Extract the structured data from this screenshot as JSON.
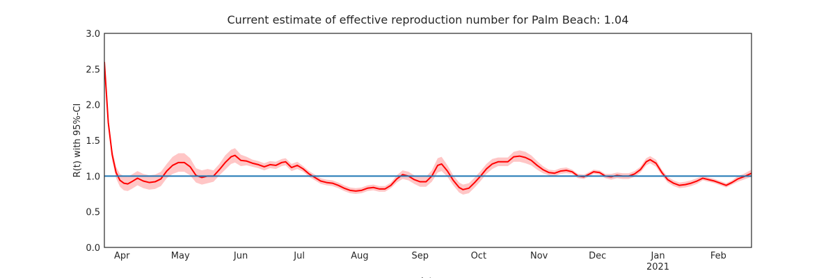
{
  "chart_data": {
    "type": "line",
    "title": "Current estimate of effective reproduction number for Palm Beach: 1.04",
    "ylabel": "R(t) with 95%-CI",
    "xlabel": "date",
    "xlim": [
      0,
      332
    ],
    "xticks": [
      {
        "value": 9,
        "label": "Apr"
      },
      {
        "value": 39,
        "label": "May"
      },
      {
        "value": 70,
        "label": "Jun"
      },
      {
        "value": 100,
        "label": "Jul"
      },
      {
        "value": 131,
        "label": "Aug"
      },
      {
        "value": 162,
        "label": "Sep"
      },
      {
        "value": 192,
        "label": "Oct"
      },
      {
        "value": 223,
        "label": "Nov"
      },
      {
        "value": 253,
        "label": "Dec"
      },
      {
        "value": 284,
        "label": "Jan"
      },
      {
        "value": 315,
        "label": "Feb"
      }
    ],
    "xsublabels": [
      {
        "value": 284,
        "label": "2021"
      }
    ],
    "ylim": [
      0,
      3
    ],
    "yticks": [
      {
        "value": 0,
        "label": "0.0"
      },
      0.5,
      {
        "value": 1,
        "label": "1.0"
      },
      1.5,
      {
        "value": 2,
        "label": "2.0"
      },
      2.5,
      {
        "value": 3,
        "label": "3.0"
      }
    ],
    "reference_line": {
      "value": 1,
      "color": "#1f77b4"
    },
    "x": [
      0,
      2,
      4,
      6,
      8,
      10,
      12,
      14,
      17,
      20,
      23,
      26,
      29,
      32,
      35,
      38,
      41,
      44,
      47,
      50,
      53,
      56,
      59,
      62,
      65,
      67,
      70,
      73,
      76,
      79,
      82,
      85,
      88,
      91,
      93,
      96,
      99,
      102,
      105,
      108,
      111,
      114,
      117,
      120,
      123,
      126,
      129,
      132,
      135,
      138,
      141,
      144,
      147,
      150,
      153,
      156,
      159,
      162,
      165,
      168,
      171,
      173,
      176,
      179,
      182,
      184,
      187,
      190,
      193,
      196,
      199,
      202,
      205,
      207,
      210,
      213,
      216,
      219,
      222,
      225,
      228,
      231,
      234,
      237,
      240,
      243,
      246,
      249,
      251,
      254,
      257,
      260,
      263,
      266,
      269,
      272,
      275,
      278,
      280,
      283,
      286,
      289,
      292,
      295,
      298,
      301,
      304,
      307,
      310,
      313,
      316,
      319,
      322,
      325,
      328,
      332
    ],
    "series": [
      {
        "color": "#ff0000",
        "band_color": "#ffb3b3",
        "values": [
          2.6,
          1.75,
          1.3,
          1.05,
          0.94,
          0.9,
          0.89,
          0.92,
          0.97,
          0.93,
          0.91,
          0.92,
          0.96,
          1.07,
          1.15,
          1.19,
          1.19,
          1.13,
          1.01,
          0.98,
          1.0,
          1.0,
          1.09,
          1.19,
          1.27,
          1.29,
          1.22,
          1.21,
          1.18,
          1.16,
          1.13,
          1.16,
          1.15,
          1.19,
          1.2,
          1.12,
          1.15,
          1.1,
          1.03,
          0.98,
          0.93,
          0.91,
          0.9,
          0.87,
          0.83,
          0.8,
          0.79,
          0.8,
          0.83,
          0.84,
          0.82,
          0.82,
          0.87,
          0.96,
          1.02,
          1.0,
          0.95,
          0.92,
          0.92,
          1.0,
          1.15,
          1.17,
          1.07,
          0.94,
          0.84,
          0.81,
          0.83,
          0.91,
          1.0,
          1.1,
          1.17,
          1.2,
          1.2,
          1.2,
          1.27,
          1.28,
          1.26,
          1.22,
          1.15,
          1.09,
          1.05,
          1.04,
          1.07,
          1.08,
          1.06,
          1.0,
          0.99,
          1.03,
          1.06,
          1.05,
          1.0,
          0.99,
          1.01,
          1.0,
          1.0,
          1.03,
          1.09,
          1.2,
          1.23,
          1.18,
          1.05,
          0.95,
          0.9,
          0.87,
          0.88,
          0.9,
          0.93,
          0.97,
          0.95,
          0.93,
          0.9,
          0.87,
          0.91,
          0.96,
          0.99,
          1.04
        ],
        "lower": [
          2.5,
          1.67,
          1.22,
          0.97,
          0.85,
          0.8,
          0.79,
          0.82,
          0.87,
          0.83,
          0.81,
          0.82,
          0.86,
          0.97,
          1.03,
          1.06,
          1.06,
          1.01,
          0.91,
          0.88,
          0.9,
          0.92,
          1.01,
          1.09,
          1.17,
          1.19,
          1.14,
          1.15,
          1.13,
          1.11,
          1.08,
          1.11,
          1.1,
          1.14,
          1.15,
          1.07,
          1.1,
          1.06,
          0.99,
          0.94,
          0.89,
          0.87,
          0.86,
          0.83,
          0.79,
          0.76,
          0.75,
          0.76,
          0.79,
          0.8,
          0.78,
          0.78,
          0.83,
          0.91,
          0.96,
          0.94,
          0.89,
          0.85,
          0.85,
          0.92,
          1.05,
          1.07,
          0.99,
          0.87,
          0.77,
          0.74,
          0.76,
          0.84,
          0.93,
          1.03,
          1.1,
          1.14,
          1.14,
          1.14,
          1.2,
          1.2,
          1.18,
          1.15,
          1.09,
          1.04,
          1.01,
          1.0,
          1.03,
          1.04,
          1.03,
          0.97,
          0.96,
          1.0,
          1.03,
          1.02,
          0.97,
          0.95,
          0.97,
          0.96,
          0.96,
          0.99,
          1.05,
          1.15,
          1.18,
          1.13,
          1.01,
          0.91,
          0.86,
          0.83,
          0.84,
          0.86,
          0.89,
          0.94,
          0.92,
          0.9,
          0.87,
          0.84,
          0.88,
          0.92,
          0.95,
          0.99
        ],
        "upper": [
          2.7,
          1.83,
          1.38,
          1.13,
          1.03,
          1.0,
          0.99,
          1.02,
          1.07,
          1.03,
          1.01,
          1.02,
          1.06,
          1.17,
          1.27,
          1.32,
          1.32,
          1.25,
          1.11,
          1.08,
          1.1,
          1.08,
          1.17,
          1.29,
          1.37,
          1.39,
          1.3,
          1.27,
          1.23,
          1.21,
          1.18,
          1.21,
          1.2,
          1.24,
          1.25,
          1.17,
          1.2,
          1.14,
          1.07,
          1.02,
          0.97,
          0.95,
          0.94,
          0.91,
          0.87,
          0.84,
          0.83,
          0.84,
          0.87,
          0.88,
          0.86,
          0.86,
          0.91,
          1.01,
          1.08,
          1.06,
          1.01,
          0.99,
          0.99,
          1.08,
          1.25,
          1.27,
          1.15,
          1.01,
          0.91,
          0.88,
          0.9,
          0.98,
          1.07,
          1.17,
          1.24,
          1.26,
          1.26,
          1.26,
          1.34,
          1.36,
          1.34,
          1.29,
          1.21,
          1.14,
          1.09,
          1.08,
          1.11,
          1.12,
          1.09,
          1.03,
          1.02,
          1.06,
          1.09,
          1.08,
          1.03,
          1.03,
          1.05,
          1.04,
          1.04,
          1.07,
          1.13,
          1.25,
          1.28,
          1.23,
          1.09,
          0.99,
          0.94,
          0.91,
          0.92,
          0.94,
          0.97,
          1.0,
          0.98,
          0.96,
          0.93,
          0.9,
          0.94,
          1.0,
          1.03,
          1.09
        ]
      }
    ]
  }
}
